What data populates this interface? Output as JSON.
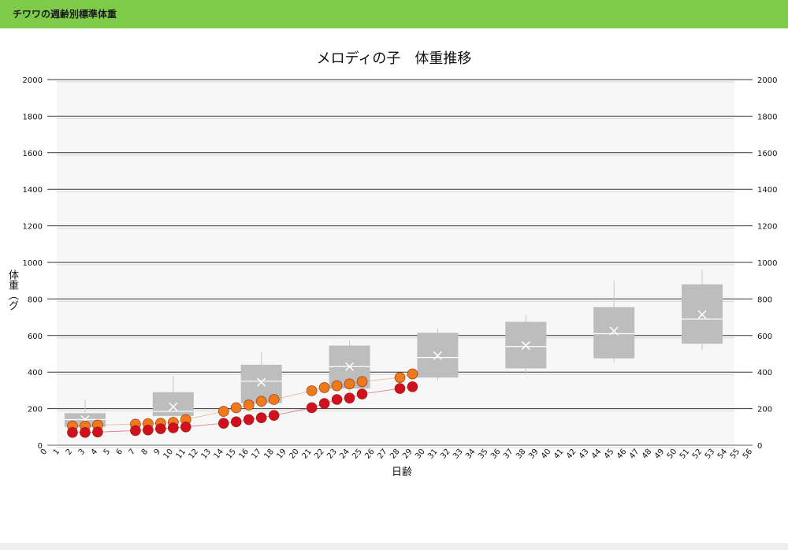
{
  "header": {
    "title": "チワワの週齢別標準体重"
  },
  "colors": {
    "header_bg": "#7ecb4a",
    "box_fill": "#bdbdbd",
    "orange_series": "#ee7a1c",
    "red_series": "#d0101f"
  },
  "chart_data": {
    "type": "box+scatter",
    "title": "メロディの子　体重推移",
    "xlabel": "日齢",
    "ylabel": "体重（グラム）",
    "xlim": [
      0,
      56
    ],
    "ylim": [
      0,
      2000
    ],
    "yticks": [
      0,
      200,
      400,
      600,
      800,
      1000,
      1200,
      1400,
      1600,
      1800,
      2000
    ],
    "xticks": [
      0,
      1,
      2,
      3,
      4,
      5,
      6,
      7,
      8,
      9,
      10,
      11,
      12,
      13,
      14,
      15,
      16,
      17,
      18,
      19,
      20,
      21,
      22,
      23,
      24,
      25,
      26,
      27,
      28,
      29,
      30,
      31,
      32,
      33,
      34,
      35,
      36,
      37,
      38,
      39,
      40,
      41,
      42,
      43,
      44,
      45,
      46,
      47,
      48,
      49,
      50,
      51,
      52,
      53,
      54,
      55,
      56
    ],
    "grid": true,
    "boxes": [
      {
        "x": 3,
        "q1": 100,
        "median": 140,
        "q3": 175,
        "mean": 140,
        "min": 85,
        "max": 250
      },
      {
        "x": 10,
        "q1": 160,
        "median": 185,
        "q3": 290,
        "mean": 210,
        "min": 140,
        "max": 380
      },
      {
        "x": 17,
        "q1": 230,
        "median": 350,
        "q3": 440,
        "mean": 345,
        "min": 200,
        "max": 510
      },
      {
        "x": 24,
        "q1": 310,
        "median": 430,
        "q3": 545,
        "mean": 430,
        "min": 290,
        "max": 575
      },
      {
        "x": 31,
        "q1": 370,
        "median": 480,
        "q3": 615,
        "mean": 490,
        "min": 355,
        "max": 640
      },
      {
        "x": 38,
        "q1": 420,
        "median": 540,
        "q3": 675,
        "mean": 545,
        "min": 390,
        "max": 710
      },
      {
        "x": 45,
        "q1": 475,
        "median": 610,
        "q3": 755,
        "mean": 625,
        "min": 450,
        "max": 900
      },
      {
        "x": 52,
        "q1": 555,
        "median": 690,
        "q3": 880,
        "mean": 715,
        "min": 520,
        "max": 960
      }
    ],
    "series": [
      {
        "color": "orange",
        "points": [
          [
            2,
            105
          ],
          [
            3,
            105
          ],
          [
            4,
            110
          ],
          [
            7,
            115
          ],
          [
            8,
            118
          ],
          [
            9,
            120
          ],
          [
            10,
            125
          ],
          [
            11,
            140
          ],
          [
            14,
            185
          ],
          [
            15,
            205
          ],
          [
            16,
            220
          ],
          [
            17,
            240
          ],
          [
            18,
            250
          ],
          [
            21,
            298
          ],
          [
            22,
            315
          ],
          [
            23,
            325
          ],
          [
            24,
            335
          ],
          [
            25,
            348
          ],
          [
            28,
            370
          ],
          [
            29,
            390
          ]
        ]
      },
      {
        "color": "red",
        "points": [
          [
            2,
            70
          ],
          [
            3,
            70
          ],
          [
            4,
            72
          ],
          [
            7,
            80
          ],
          [
            8,
            83
          ],
          [
            9,
            90
          ],
          [
            10,
            95
          ],
          [
            11,
            100
          ],
          [
            14,
            120
          ],
          [
            15,
            128
          ],
          [
            16,
            140
          ],
          [
            17,
            150
          ],
          [
            18,
            163
          ],
          [
            21,
            205
          ],
          [
            22,
            228
          ],
          [
            23,
            250
          ],
          [
            24,
            258
          ],
          [
            25,
            280
          ],
          [
            28,
            310
          ],
          [
            29,
            320
          ]
        ]
      }
    ]
  }
}
